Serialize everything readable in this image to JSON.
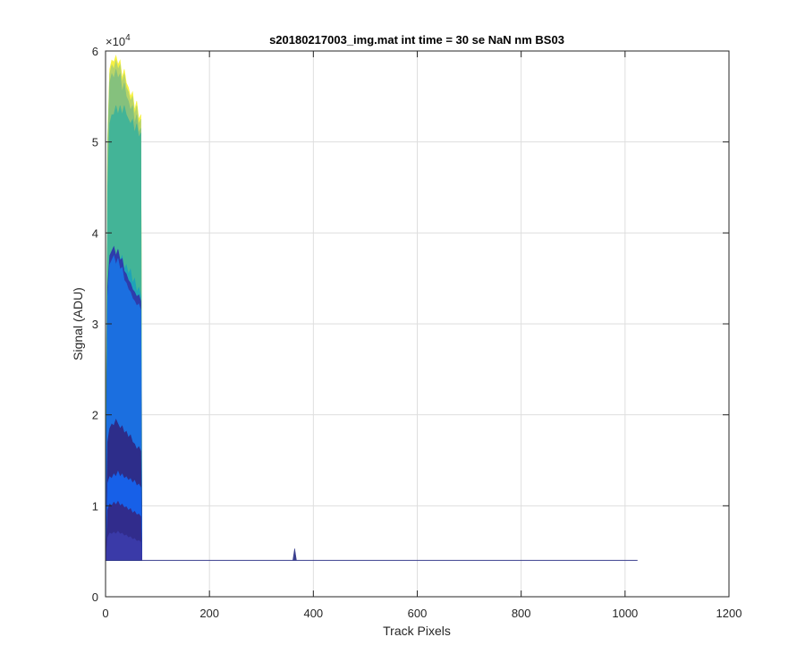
{
  "chart_data": {
    "type": "area",
    "title": "s20180217003_img.mat int time = 30 se  NaN nm BS03",
    "xlabel": "Track Pixels",
    "ylabel": "Signal (ADU)",
    "xlim": [
      0,
      1200
    ],
    "ylim": [
      0,
      60000
    ],
    "xticks": [
      "0",
      "200",
      "400",
      "600",
      "800",
      "1000",
      "1200"
    ],
    "yticks": [
      "0",
      "1",
      "2",
      "3",
      "4",
      "5",
      "6"
    ],
    "y_exponent_base": "×10",
    "y_exponent_power": "4",
    "grid": true,
    "legend": "none",
    "colors": {
      "axes": "#262626",
      "grid": "#dedede",
      "baseline_line": "#3a3f8e"
    },
    "baseline_value": 4000,
    "baseline_extent": [
      0,
      1024
    ],
    "spike": {
      "x": 364,
      "y": 5300
    },
    "series": [
      {
        "color": "#f6f143",
        "values": [
          [
            0,
            4000
          ],
          [
            4,
            50000
          ],
          [
            8,
            58000
          ],
          [
            12,
            59000
          ],
          [
            16,
            58800
          ],
          [
            20,
            59500
          ],
          [
            24,
            58500
          ],
          [
            28,
            59000
          ],
          [
            32,
            57000
          ],
          [
            36,
            58000
          ],
          [
            40,
            56500
          ],
          [
            44,
            56000
          ],
          [
            48,
            55000
          ],
          [
            52,
            55500
          ],
          [
            56,
            53500
          ],
          [
            60,
            54500
          ],
          [
            64,
            52500
          ],
          [
            68,
            53000
          ],
          [
            70,
            4000
          ]
        ]
      },
      {
        "color": "#b7d46a",
        "values": [
          [
            0,
            4000
          ],
          [
            4,
            50000
          ],
          [
            8,
            57500
          ],
          [
            12,
            58500
          ],
          [
            16,
            58000
          ],
          [
            20,
            59000
          ],
          [
            24,
            58000
          ],
          [
            28,
            58500
          ],
          [
            32,
            56500
          ],
          [
            36,
            57500
          ],
          [
            40,
            56000
          ],
          [
            44,
            55500
          ],
          [
            48,
            54500
          ],
          [
            52,
            55000
          ],
          [
            56,
            53000
          ],
          [
            60,
            54000
          ],
          [
            64,
            52000
          ],
          [
            68,
            52500
          ],
          [
            70,
            4000
          ]
        ]
      },
      {
        "color": "#85c17d",
        "values": [
          [
            0,
            4000
          ],
          [
            4,
            49000
          ],
          [
            8,
            56500
          ],
          [
            12,
            57500
          ],
          [
            16,
            57000
          ],
          [
            20,
            58000
          ],
          [
            24,
            57000
          ],
          [
            28,
            57500
          ],
          [
            32,
            55500
          ],
          [
            36,
            56500
          ],
          [
            40,
            55000
          ],
          [
            44,
            54500
          ],
          [
            48,
            53500
          ],
          [
            52,
            54000
          ],
          [
            56,
            52000
          ],
          [
            60,
            53000
          ],
          [
            64,
            51000
          ],
          [
            68,
            51500
          ],
          [
            70,
            4000
          ]
        ]
      },
      {
        "color": "#43b497",
        "values": [
          [
            0,
            4000
          ],
          [
            4,
            45000
          ],
          [
            8,
            52000
          ],
          [
            12,
            53000
          ],
          [
            16,
            53000
          ],
          [
            20,
            54000
          ],
          [
            24,
            53000
          ],
          [
            28,
            54000
          ],
          [
            32,
            53000
          ],
          [
            36,
            54000
          ],
          [
            40,
            53000
          ],
          [
            44,
            52500
          ],
          [
            48,
            52000
          ],
          [
            52,
            52500
          ],
          [
            56,
            51000
          ],
          [
            60,
            52000
          ],
          [
            64,
            50500
          ],
          [
            68,
            51000
          ],
          [
            70,
            4000
          ]
        ]
      },
      {
        "color": "#1fa3b8",
        "values": [
          [
            0,
            4000
          ],
          [
            4,
            33000
          ],
          [
            8,
            37000
          ],
          [
            12,
            37500
          ],
          [
            16,
            38000
          ],
          [
            20,
            37000
          ],
          [
            24,
            38000
          ],
          [
            28,
            37000
          ],
          [
            32,
            37500
          ],
          [
            36,
            36000
          ],
          [
            40,
            36500
          ],
          [
            44,
            35500
          ],
          [
            48,
            36000
          ],
          [
            52,
            34500
          ],
          [
            56,
            35000
          ],
          [
            60,
            33500
          ],
          [
            64,
            34000
          ],
          [
            68,
            33000
          ],
          [
            70,
            4000
          ]
        ]
      },
      {
        "color": "#2e3cab",
        "values": [
          [
            0,
            4000
          ],
          [
            4,
            34000
          ],
          [
            8,
            37500
          ],
          [
            12,
            38000
          ],
          [
            16,
            38500
          ],
          [
            20,
            37500
          ],
          [
            24,
            38200
          ],
          [
            28,
            37000
          ],
          [
            32,
            37200
          ],
          [
            36,
            35800
          ],
          [
            40,
            35500
          ],
          [
            44,
            34800
          ],
          [
            48,
            34500
          ],
          [
            52,
            33800
          ],
          [
            56,
            33500
          ],
          [
            60,
            33000
          ],
          [
            64,
            33200
          ],
          [
            68,
            32500
          ],
          [
            70,
            4000
          ]
        ]
      },
      {
        "color": "#1b6fe0",
        "values": [
          [
            0,
            4000
          ],
          [
            4,
            33000
          ],
          [
            8,
            36500
          ],
          [
            12,
            37000
          ],
          [
            16,
            37500
          ],
          [
            20,
            36500
          ],
          [
            24,
            37200
          ],
          [
            28,
            36000
          ],
          [
            32,
            36200
          ],
          [
            36,
            34800
          ],
          [
            40,
            34500
          ],
          [
            44,
            33800
          ],
          [
            48,
            33500
          ],
          [
            52,
            32800
          ],
          [
            56,
            32500
          ],
          [
            60,
            32000
          ],
          [
            64,
            32200
          ],
          [
            68,
            31500
          ],
          [
            70,
            4000
          ]
        ]
      },
      {
        "color": "#2d2d8a",
        "values": [
          [
            0,
            4000
          ],
          [
            4,
            17000
          ],
          [
            8,
            18500
          ],
          [
            12,
            19000
          ],
          [
            16,
            18800
          ],
          [
            20,
            19500
          ],
          [
            24,
            19000
          ],
          [
            28,
            18500
          ],
          [
            32,
            18800
          ],
          [
            36,
            18000
          ],
          [
            40,
            18200
          ],
          [
            44,
            17500
          ],
          [
            48,
            17800
          ],
          [
            52,
            17000
          ],
          [
            56,
            16800
          ],
          [
            60,
            16200
          ],
          [
            64,
            16500
          ],
          [
            68,
            16000
          ],
          [
            70,
            4000
          ]
        ]
      },
      {
        "color": "#1760e8",
        "values": [
          [
            0,
            4000
          ],
          [
            4,
            12500
          ],
          [
            8,
            13200
          ],
          [
            12,
            13000
          ],
          [
            16,
            13500
          ],
          [
            20,
            13200
          ],
          [
            24,
            13800
          ],
          [
            28,
            13200
          ],
          [
            32,
            13500
          ],
          [
            36,
            13000
          ],
          [
            40,
            13200
          ],
          [
            44,
            12800
          ],
          [
            48,
            13000
          ],
          [
            52,
            12500
          ],
          [
            56,
            12800
          ],
          [
            60,
            12200
          ],
          [
            64,
            12400
          ],
          [
            68,
            12000
          ],
          [
            70,
            4000
          ]
        ]
      },
      {
        "color": "#312c8c",
        "values": [
          [
            0,
            4000
          ],
          [
            4,
            9500
          ],
          [
            8,
            10200
          ],
          [
            12,
            10000
          ],
          [
            16,
            10400
          ],
          [
            20,
            10100
          ],
          [
            24,
            10500
          ],
          [
            28,
            10000
          ],
          [
            32,
            10200
          ],
          [
            36,
            9800
          ],
          [
            40,
            9900
          ],
          [
            44,
            9500
          ],
          [
            48,
            9700
          ],
          [
            52,
            9200
          ],
          [
            56,
            9400
          ],
          [
            60,
            9000
          ],
          [
            64,
            9100
          ],
          [
            68,
            8800
          ],
          [
            70,
            4000
          ]
        ]
      },
      {
        "color": "#3a3aa8",
        "values": [
          [
            0,
            4000
          ],
          [
            4,
            6500
          ],
          [
            8,
            7000
          ],
          [
            12,
            6900
          ],
          [
            16,
            7100
          ],
          [
            20,
            6900
          ],
          [
            24,
            7200
          ],
          [
            28,
            6900
          ],
          [
            32,
            7000
          ],
          [
            36,
            6700
          ],
          [
            40,
            6800
          ],
          [
            44,
            6500
          ],
          [
            48,
            6600
          ],
          [
            52,
            6300
          ],
          [
            56,
            6400
          ],
          [
            60,
            6100
          ],
          [
            64,
            6200
          ],
          [
            68,
            6000
          ],
          [
            70,
            4000
          ]
        ]
      }
    ]
  }
}
